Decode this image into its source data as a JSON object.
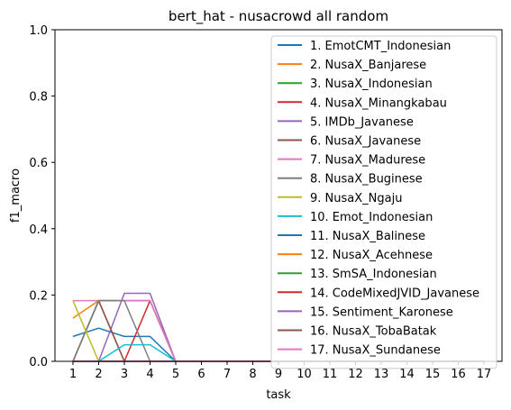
{
  "chart_data": {
    "type": "line",
    "title": "bert_hat - nusacrowd all random",
    "xlabel": "task",
    "ylabel": "f1_macro",
    "x": [
      1,
      2,
      3,
      4,
      5,
      6,
      7,
      8,
      9,
      10,
      11,
      12,
      13,
      14,
      15,
      16,
      17
    ],
    "xlim": [
      0.3,
      17.7
    ],
    "ylim": [
      0,
      1
    ],
    "yticks": [
      "0.0",
      "0.2",
      "0.4",
      "0.6",
      "0.8",
      "1.0"
    ],
    "ytick_values": [
      0,
      0.2,
      0.4,
      0.6,
      0.8,
      1.0
    ],
    "grid": false,
    "legend_position": "upper right",
    "series": [
      {
        "name": "1. EmotCMT_Indonesian",
        "color": "#1f77b4",
        "values": [
          0.075,
          0.1,
          0.075,
          0.075,
          0,
          0,
          0,
          0,
          0,
          0,
          0,
          0,
          0,
          0,
          0,
          0,
          0
        ]
      },
      {
        "name": "2. NusaX_Banjarese",
        "color": "#ff7f0e",
        "values": [
          0.13,
          0.183,
          0.183,
          0.183,
          0,
          0,
          0,
          0,
          0,
          0,
          0,
          0,
          0,
          0,
          0,
          0,
          0
        ]
      },
      {
        "name": "3. NusaX_Indonesian",
        "color": "#2ca02c",
        "values": [
          0,
          0.183,
          0.183,
          0.183,
          0,
          0,
          0,
          0,
          0,
          0,
          0,
          0,
          0,
          0,
          0,
          0,
          0
        ]
      },
      {
        "name": "4. NusaX_Minangkabau",
        "color": "#d62728",
        "values": [
          0,
          0.183,
          0,
          0.183,
          0,
          0,
          0,
          0,
          0,
          0,
          0,
          0,
          0,
          0,
          0,
          0,
          0
        ]
      },
      {
        "name": "5. IMDb_Javanese",
        "color": "#9467bd",
        "values": [
          0,
          0,
          0.205,
          0.205,
          0,
          0,
          0,
          0,
          0,
          0,
          0,
          0,
          0,
          0,
          0,
          0,
          0
        ]
      },
      {
        "name": "6. NusaX_Javanese",
        "color": "#8c564b",
        "values": [
          0,
          0.183,
          0,
          0,
          0,
          0,
          0,
          0,
          0,
          0,
          0,
          0,
          0,
          0,
          0,
          0,
          0
        ]
      },
      {
        "name": "7. NusaX_Madurese",
        "color": "#e377c2",
        "values": [
          0.183,
          0.183,
          0.183,
          0.183,
          0,
          0,
          0,
          0,
          0,
          0,
          0,
          0,
          0,
          0,
          0,
          0,
          0
        ]
      },
      {
        "name": "8. NusaX_Buginese",
        "color": "#7f7f7f",
        "values": [
          0,
          0.183,
          0.183,
          0,
          0,
          0,
          0,
          0,
          0,
          0,
          0,
          0,
          0,
          0,
          0,
          0,
          0
        ]
      },
      {
        "name": "9. NusaX_Ngaju",
        "color": "#bcbd22",
        "values": [
          0.183,
          0,
          0,
          0,
          0,
          0,
          0,
          0,
          0,
          0,
          0,
          0,
          0,
          0,
          0,
          0,
          0
        ]
      },
      {
        "name": "10. Emot_Indonesian",
        "color": "#17becf",
        "values": [
          0,
          0,
          0.05,
          0.05,
          0,
          0,
          0,
          0,
          0,
          0,
          0,
          0,
          0,
          0,
          0,
          0,
          0
        ]
      },
      {
        "name": "11. NusaX_Balinese",
        "color": "#1f77b4",
        "values": [
          0,
          0,
          0,
          0,
          0,
          0,
          0,
          0,
          0,
          0,
          0,
          0,
          0,
          0,
          0,
          0,
          0
        ]
      },
      {
        "name": "12. NusaX_Acehnese",
        "color": "#ff7f0e",
        "values": [
          0,
          0,
          0,
          0,
          0,
          0,
          0,
          0,
          0,
          0,
          0,
          0,
          0,
          0,
          0,
          0,
          0
        ]
      },
      {
        "name": "13. SmSA_Indonesian",
        "color": "#2ca02c",
        "values": [
          0,
          0,
          0,
          0,
          0,
          0,
          0,
          0,
          0,
          0,
          0,
          0,
          0,
          0,
          0,
          0,
          0
        ]
      },
      {
        "name": "14. CodeMixedJVID_Javanese",
        "color": "#d62728",
        "values": [
          0,
          0,
          0,
          0,
          0,
          0,
          0,
          0,
          0,
          0,
          0,
          0,
          0,
          0,
          0,
          0,
          0
        ]
      },
      {
        "name": "15. Sentiment_Karonese",
        "color": "#9467bd",
        "values": [
          0,
          0,
          0,
          0,
          0,
          0,
          0,
          0,
          0,
          0,
          0,
          0,
          0,
          0,
          0,
          0,
          0
        ]
      },
      {
        "name": "16. NusaX_TobaBatak",
        "color": "#8c564b",
        "values": [
          0,
          0,
          0,
          0,
          0,
          0,
          0,
          0,
          0,
          0,
          0,
          0,
          0,
          0,
          0,
          0,
          0
        ]
      },
      {
        "name": "17. NusaX_Sundanese",
        "color": "#e377c2",
        "values": [
          0,
          0,
          0,
          0,
          0,
          0,
          0,
          0,
          0,
          0,
          0,
          0,
          0,
          0,
          0,
          0,
          0
        ]
      }
    ]
  }
}
